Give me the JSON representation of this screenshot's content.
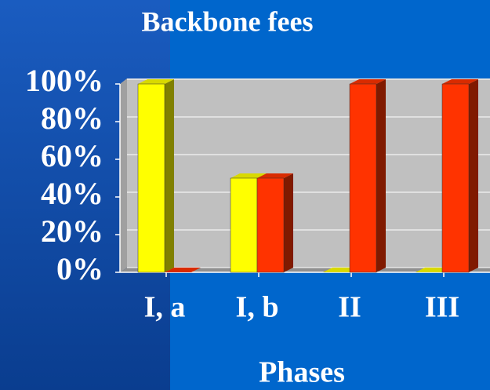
{
  "chart_data": {
    "type": "bar",
    "title": "Backbone fees",
    "x_label": "Phases",
    "categories": [
      "I, a",
      "I, b",
      "II",
      "III"
    ],
    "series": [
      {
        "color": "#ffff00",
        "values": [
          100,
          50,
          0,
          0
        ]
      },
      {
        "color": "#ff3300",
        "values": [
          0,
          50,
          100,
          100
        ]
      }
    ],
    "ylim": [
      0,
      100
    ],
    "yticks": [
      {
        "value": 0,
        "label": "0%"
      },
      {
        "value": 20,
        "label": "20%"
      },
      {
        "value": 40,
        "label": "40%"
      },
      {
        "value": 60,
        "label": "60%"
      },
      {
        "value": 80,
        "label": "80%"
      },
      {
        "value": 100,
        "label": "100%"
      }
    ],
    "grid": true
  }
}
